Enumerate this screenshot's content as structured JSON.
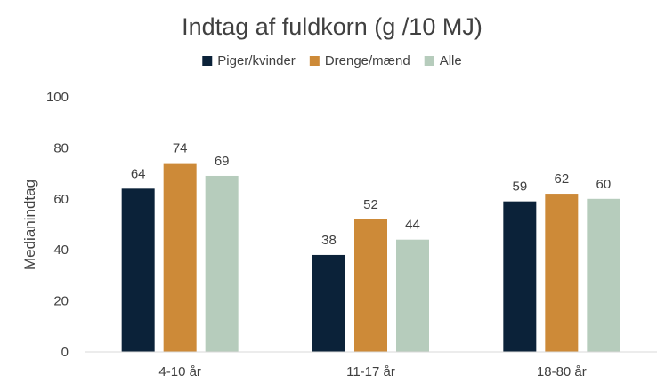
{
  "chart_data": {
    "type": "bar",
    "title": "Indtag af fuldkorn (g /10 MJ)",
    "xlabel": "",
    "ylabel": "Medianindtag",
    "categories": [
      "4-10 år",
      "11-17 år",
      "18-80 år"
    ],
    "series": [
      {
        "name": "Piger/kvinder",
        "color": "#0b2239",
        "values": [
          64,
          38,
          59
        ]
      },
      {
        "name": "Drenge/mænd",
        "color": "#cd8a38",
        "values": [
          74,
          52,
          62
        ]
      },
      {
        "name": "Alle",
        "color": "#b6ccbc",
        "values": [
          69,
          44,
          60
        ]
      }
    ],
    "ylim": [
      0,
      100
    ],
    "yticks": [
      0,
      20,
      40,
      60,
      80,
      100
    ],
    "grid": false,
    "legend_position": "top",
    "data_labels": true
  }
}
